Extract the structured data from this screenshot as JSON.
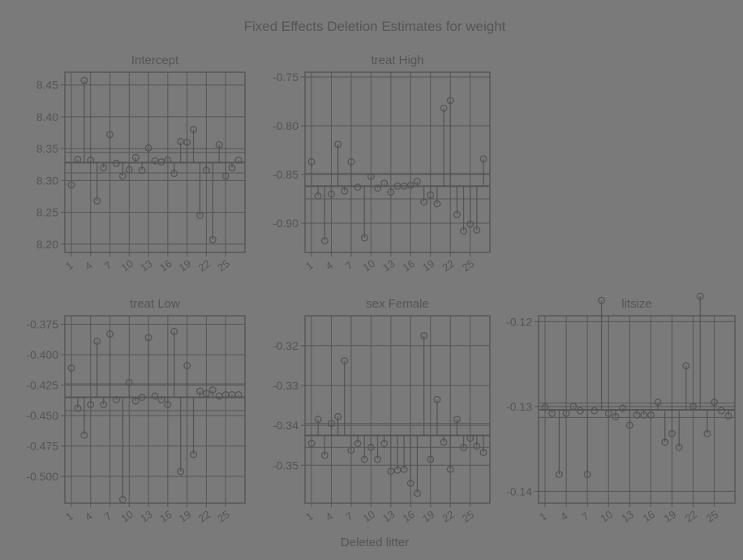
{
  "title": "Fixed Effects Deletion Estimates for weight",
  "xlabel": "Deleted litter",
  "colors": {
    "background": "#7a7a7a",
    "ink": "#555555",
    "text": "#555555",
    "panel_bg": "#7a7a7a"
  },
  "chart_data": [
    {
      "type": "scatter",
      "title": "Intercept",
      "x_tick_labels": [
        "1",
        "4",
        "7",
        "10",
        "13",
        "16",
        "19",
        "22",
        "25"
      ],
      "y_tick_labels": [
        "8.20",
        "8.25",
        "8.30",
        "8.35",
        "8.40",
        "8.45"
      ],
      "y_ticks": [
        8.2,
        8.25,
        8.3,
        8.35,
        8.4,
        8.45
      ],
      "ylim": [
        8.187,
        8.47
      ],
      "reference_line": 8.328,
      "reference_band": [
        8.312,
        8.344
      ],
      "x": [
        1,
        2,
        3,
        4,
        5,
        6,
        7,
        8,
        9,
        10,
        11,
        12,
        13,
        14,
        15,
        16,
        17,
        18,
        19,
        20,
        21,
        22,
        23,
        24,
        25,
        26,
        27
      ],
      "values": [
        8.293,
        8.333,
        8.457,
        8.332,
        8.268,
        8.32,
        8.372,
        8.327,
        8.307,
        8.317,
        8.336,
        8.316,
        8.351,
        8.331,
        8.329,
        8.332,
        8.311,
        8.361,
        8.36,
        8.38,
        8.245,
        8.316,
        8.207,
        8.356,
        8.307,
        8.32,
        8.332
      ]
    },
    {
      "type": "scatter",
      "title": "treat High",
      "x_tick_labels": [
        "1",
        "4",
        "7",
        "10",
        "13",
        "16",
        "19",
        "22",
        "25"
      ],
      "y_tick_labels": [
        "-0.90",
        "-0.85",
        "-0.80",
        "-0.75"
      ],
      "y_ticks": [
        -0.9,
        -0.85,
        -0.8,
        -0.75
      ],
      "ylim": [
        -0.93,
        -0.745
      ],
      "reference_line": -0.862,
      "reference_band": [
        -0.875,
        -0.849
      ],
      "x": [
        1,
        2,
        3,
        4,
        5,
        6,
        7,
        8,
        9,
        10,
        11,
        12,
        13,
        14,
        15,
        16,
        17,
        18,
        19,
        20,
        21,
        22,
        23,
        24,
        25,
        26,
        27
      ],
      "values": [
        -0.837,
        -0.872,
        -0.918,
        -0.87,
        -0.819,
        -0.867,
        -0.837,
        -0.863,
        -0.915,
        -0.852,
        -0.864,
        -0.859,
        -0.868,
        -0.862,
        -0.862,
        -0.861,
        -0.857,
        -0.878,
        -0.871,
        -0.88,
        -0.782,
        -0.774,
        -0.891,
        -0.908,
        -0.901,
        -0.907,
        -0.834
      ]
    },
    {
      "type": "scatter",
      "title": "treat Low",
      "x_tick_labels": [
        "1",
        "4",
        "7",
        "10",
        "13",
        "16",
        "19",
        "22",
        "25"
      ],
      "y_tick_labels": [
        "-0.500",
        "-0.475",
        "-0.450",
        "-0.425",
        "-0.400",
        "-0.375"
      ],
      "y_ticks": [
        -0.5,
        -0.475,
        -0.45,
        -0.425,
        -0.4,
        -0.375
      ],
      "ylim": [
        -0.522,
        -0.368
      ],
      "reference_line": -0.435,
      "reference_band": [
        -0.446,
        -0.424
      ],
      "x": [
        1,
        2,
        3,
        4,
        5,
        6,
        7,
        8,
        9,
        10,
        11,
        12,
        13,
        14,
        15,
        16,
        17,
        18,
        19,
        20,
        21,
        22,
        23,
        24,
        25,
        26,
        27
      ],
      "values": [
        -0.411,
        -0.444,
        -0.466,
        -0.441,
        -0.389,
        -0.441,
        -0.383,
        -0.437,
        -0.519,
        -0.423,
        -0.438,
        -0.435,
        -0.386,
        -0.434,
        -0.437,
        -0.441,
        -0.381,
        -0.496,
        -0.409,
        -0.482,
        -0.43,
        -0.432,
        -0.429,
        -0.434,
        -0.433,
        -0.433,
        -0.433
      ]
    },
    {
      "type": "scatter",
      "title": "sex Female",
      "x_tick_labels": [
        "1",
        "4",
        "7",
        "10",
        "13",
        "16",
        "19",
        "22",
        "25"
      ],
      "y_tick_labels": [
        "-0.35",
        "-0.34",
        "-0.33",
        "-0.32"
      ],
      "y_ticks": [
        -0.35,
        -0.34,
        -0.33,
        -0.32
      ],
      "ylim": [
        -0.3595,
        -0.3125
      ],
      "reference_line": -0.3425,
      "reference_band": [
        -0.3455,
        -0.3395
      ],
      "x": [
        1,
        2,
        3,
        4,
        5,
        6,
        7,
        8,
        9,
        10,
        11,
        12,
        13,
        14,
        15,
        16,
        17,
        18,
        19,
        20,
        21,
        22,
        23,
        24,
        25,
        26,
        27
      ],
      "values": [
        -0.3445,
        -0.3385,
        -0.3475,
        -0.3395,
        -0.3378,
        -0.3238,
        -0.3462,
        -0.3445,
        -0.3485,
        -0.3455,
        -0.3485,
        -0.3445,
        -0.3515,
        -0.3512,
        -0.351,
        -0.3545,
        -0.357,
        -0.3175,
        -0.3485,
        -0.3335,
        -0.3442,
        -0.351,
        -0.3385,
        -0.3455,
        -0.3432,
        -0.3452,
        -0.3468
      ]
    },
    {
      "type": "scatter",
      "title": "litsize",
      "x_tick_labels": [
        "1",
        "4",
        "7",
        "10",
        "13",
        "16",
        "19",
        "22",
        "25"
      ],
      "y_tick_labels": [
        "-0.14",
        "-0.13",
        "-0.12"
      ],
      "y_ticks": [
        -0.14,
        -0.13,
        -0.12
      ],
      "ylim": [
        -0.1414,
        -0.1193
      ],
      "reference_line": -0.1304,
      "reference_band": [
        -0.1313,
        -0.1296
      ],
      "x": [
        1,
        2,
        3,
        4,
        5,
        6,
        7,
        8,
        9,
        10,
        11,
        12,
        13,
        14,
        15,
        16,
        17,
        18,
        19,
        20,
        21,
        22,
        23,
        24,
        25,
        26,
        27
      ],
      "values": [
        -0.1301,
        -0.1308,
        -0.138,
        -0.1308,
        -0.13,
        -0.1305,
        -0.138,
        -0.1305,
        -0.1175,
        -0.1308,
        -0.1312,
        -0.1302,
        -0.1322,
        -0.131,
        -0.131,
        -0.131,
        -0.1295,
        -0.1342,
        -0.1332,
        -0.1348,
        -0.1252,
        -0.13,
        -0.117,
        -0.1332,
        -0.1295,
        -0.1305,
        -0.1311
      ]
    }
  ]
}
